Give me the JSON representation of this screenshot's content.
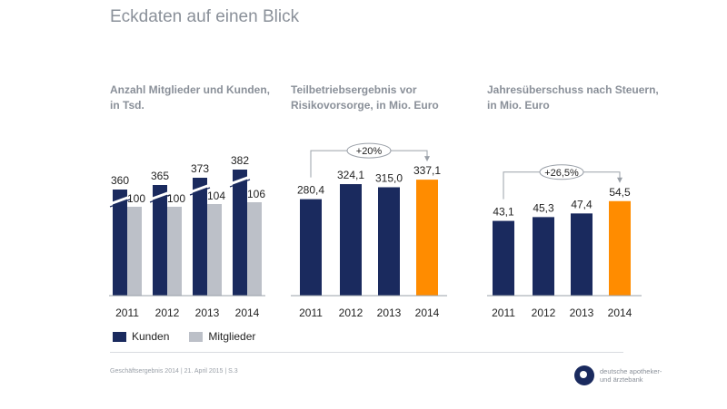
{
  "page": {
    "title": "Eckdaten auf einen Blick",
    "footer": "Geschäftsergebnis 2014 | 21. April 2015 | S.3",
    "brand_text": "deutsche apotheker-\nund ärztebank"
  },
  "legend": {
    "items": [
      {
        "label": "Kunden",
        "color": "#1a2a5e"
      },
      {
        "label": "Mitglieder",
        "color": "#bcc0c8"
      }
    ]
  },
  "colors": {
    "navy": "#1a2a5e",
    "grey": "#bcc0c8",
    "orange": "#ff8c00",
    "axis": "#9aa0a8"
  },
  "chart_data": [
    {
      "type": "bar",
      "title": "Anzahl Mitglieder und Kunden,\n in Tsd.",
      "categories": [
        "2011",
        "2012",
        "2013",
        "2014"
      ],
      "axis_break": true,
      "series": [
        {
          "name": "Kunden",
          "values": [
            360,
            365,
            373,
            382
          ],
          "labels": [
            "360",
            "365",
            "373",
            "382"
          ]
        },
        {
          "name": "Mitglieder",
          "values": [
            100,
            100,
            104,
            106
          ],
          "labels": [
            "100",
            "100",
            "104",
            "106"
          ]
        }
      ]
    },
    {
      "type": "bar",
      "title": "Teilbetriebsergebnis vor\nRisikovorsorge, in Mio. Euro",
      "categories": [
        "2011",
        "2012",
        "2013",
        "2014"
      ],
      "values": [
        280.4,
        324.1,
        315.0,
        337.1
      ],
      "labels": [
        "280,4",
        "324,1",
        "315,0",
        "337,1"
      ],
      "highlight": [
        false,
        false,
        false,
        true
      ],
      "ylim": [
        0,
        340
      ],
      "annotation": {
        "text": "+20%",
        "from": "2011",
        "to": "2014"
      }
    },
    {
      "type": "bar",
      "title": "Jahresüberschuss nach Steuern,\nin Mio. Euro",
      "categories": [
        "2011",
        "2012",
        "2013",
        "2014"
      ],
      "values": [
        43.1,
        45.3,
        47.4,
        54.5
      ],
      "labels": [
        "43,1",
        "45,3",
        "47,4",
        "54,5"
      ],
      "highlight": [
        false,
        false,
        false,
        true
      ],
      "ylim": [
        0,
        57
      ],
      "annotation": {
        "text": "+26,5%",
        "from": "2011",
        "to": "2014"
      }
    }
  ]
}
